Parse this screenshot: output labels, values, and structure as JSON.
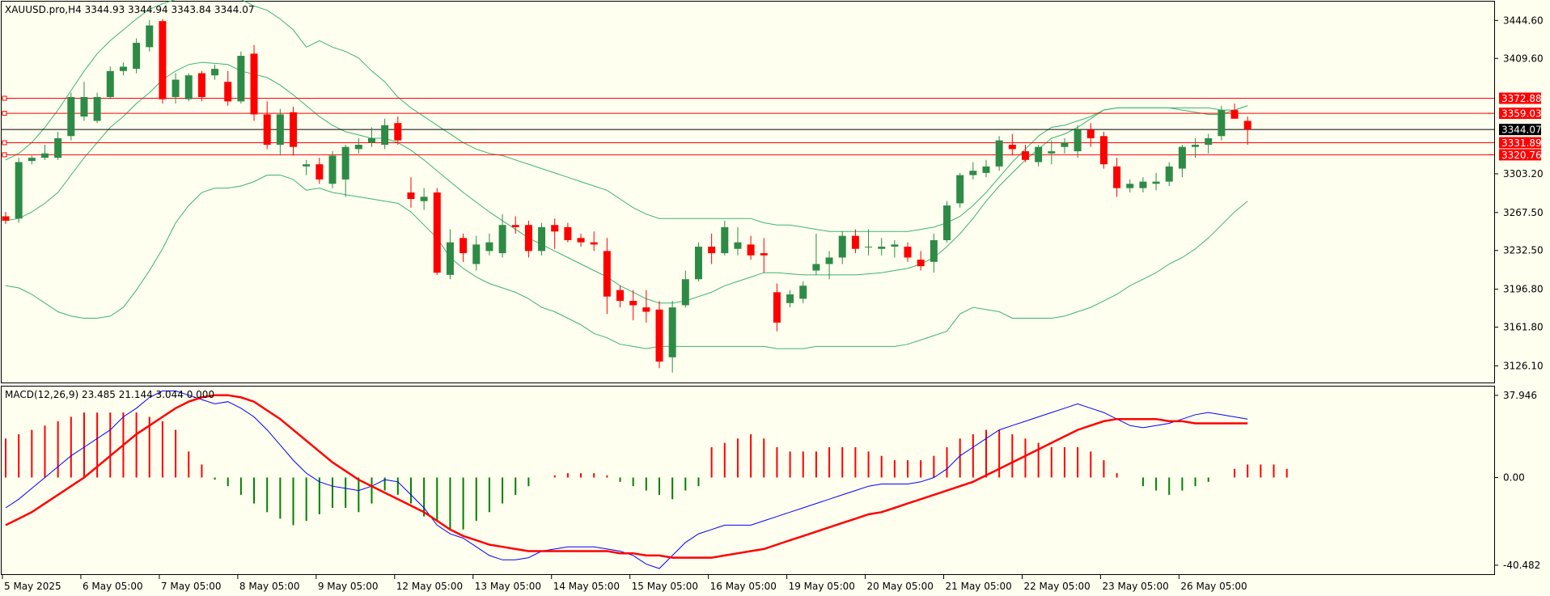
{
  "header": {
    "price_title": "XAUUSD.pro,H4  3344.93 3344.94 3343.84 3344.07",
    "macd_title": "MACD(12,26,9) 23.485 21.144 3.044 0.000"
  },
  "colors": {
    "background": "#fffff0",
    "bull": "#2e8b46",
    "bear": "#ff0000",
    "bands": "#3cb371",
    "level_line": "#ff0000",
    "current_price": "#000000",
    "macd_line": "#0000ff",
    "signal_line": "#ff0000",
    "hist_pos": "#ff0000",
    "hist_neg": "#008000"
  },
  "chart_data": [
    {
      "type": "candlestick",
      "title": "XAUUSD.pro,H4",
      "ylim": [
        3110,
        3462
      ],
      "y_ticks": [
        "3444.60",
        "3409.60",
        "3303.20",
        "3267.50",
        "3232.50",
        "3196.80",
        "3161.80",
        "3126.10"
      ],
      "x_labels": [
        "5 May 2025",
        "6 May 05:00",
        "7 May 05:00",
        "8 May 05:00",
        "9 May 05:00",
        "12 May 05:00",
        "13 May 05:00",
        "14 May 05:00",
        "15 May 05:00",
        "16 May 05:00",
        "19 May 05:00",
        "20 May 05:00",
        "21 May 05:00",
        "22 May 05:00",
        "23 May 05:00",
        "26 May 05:00"
      ],
      "horizontal_levels": [
        {
          "label": "3372.88",
          "value": 3372.88
        },
        {
          "label": "3359.03",
          "value": 3359.03
        },
        {
          "label": "3331.89",
          "value": 3331.89
        },
        {
          "label": "3320.76",
          "value": 3320.76
        }
      ],
      "current_price": {
        "label": "3344.07",
        "value": 3344.07
      },
      "candles": [
        [
          3264,
          3268,
          3257,
          3260
        ],
        [
          3262,
          3318,
          3258,
          3314
        ],
        [
          3315,
          3320,
          3312,
          3318
        ],
        [
          3318,
          3330,
          3316,
          3322
        ],
        [
          3318,
          3342,
          3316,
          3336
        ],
        [
          3338,
          3378,
          3334,
          3374
        ],
        [
          3356,
          3388,
          3352,
          3374
        ],
        [
          3352,
          3378,
          3350,
          3374
        ],
        [
          3374,
          3402,
          3372,
          3398
        ],
        [
          3398,
          3406,
          3394,
          3402
        ],
        [
          3400,
          3428,
          3396,
          3424
        ],
        [
          3420,
          3445,
          3416,
          3440
        ],
        [
          3444,
          3446,
          3368,
          3372
        ],
        [
          3374,
          3396,
          3368,
          3390
        ],
        [
          3372,
          3396,
          3370,
          3394
        ],
        [
          3396,
          3398,
          3370,
          3374
        ],
        [
          3394,
          3404,
          3390,
          3400
        ],
        [
          3388,
          3398,
          3366,
          3370
        ],
        [
          3370,
          3416,
          3368,
          3412
        ],
        [
          3414,
          3422,
          3352,
          3358
        ],
        [
          3358,
          3370,
          3326,
          3330
        ],
        [
          3330,
          3363,
          3320,
          3358
        ],
        [
          3360,
          3365,
          3320,
          3328
        ],
        [
          3310,
          3316,
          3302,
          3312
        ],
        [
          3312,
          3318,
          3294,
          3298
        ],
        [
          3294,
          3324,
          3290,
          3320
        ],
        [
          3298,
          3330,
          3282,
          3328
        ],
        [
          3326,
          3336,
          3322,
          3330
        ],
        [
          3332,
          3346,
          3328,
          3336
        ],
        [
          3330,
          3354,
          3326,
          3348
        ],
        [
          3350,
          3356,
          3330,
          3334
        ],
        [
          3286,
          3300,
          3272,
          3280
        ],
        [
          3278,
          3290,
          3270,
          3282
        ],
        [
          3286,
          3290,
          3210,
          3212
        ],
        [
          3210,
          3252,
          3206,
          3240
        ],
        [
          3244,
          3248,
          3222,
          3230
        ],
        [
          3220,
          3246,
          3214,
          3238
        ],
        [
          3232,
          3248,
          3228,
          3240
        ],
        [
          3230,
          3266,
          3226,
          3256
        ],
        [
          3256,
          3264,
          3248,
          3254
        ],
        [
          3256,
          3260,
          3226,
          3232
        ],
        [
          3232,
          3258,
          3228,
          3254
        ],
        [
          3256,
          3262,
          3234,
          3250
        ],
        [
          3254,
          3258,
          3240,
          3242
        ],
        [
          3244,
          3248,
          3236,
          3240
        ],
        [
          3240,
          3250,
          3232,
          3238
        ],
        [
          3232,
          3244,
          3174,
          3190
        ],
        [
          3196,
          3200,
          3180,
          3186
        ],
        [
          3186,
          3196,
          3168,
          3182
        ],
        [
          3180,
          3196,
          3166,
          3176
        ],
        [
          3178,
          3186,
          3124,
          3130
        ],
        [
          3134,
          3186,
          3120,
          3180
        ],
        [
          3182,
          3214,
          3180,
          3206
        ],
        [
          3206,
          3240,
          3204,
          3236
        ],
        [
          3236,
          3248,
          3220,
          3230
        ],
        [
          3230,
          3260,
          3228,
          3254
        ],
        [
          3234,
          3254,
          3228,
          3240
        ],
        [
          3238,
          3246,
          3224,
          3228
        ],
        [
          3230,
          3244,
          3212,
          3228
        ],
        [
          3194,
          3202,
          3158,
          3166
        ],
        [
          3184,
          3196,
          3180,
          3192
        ],
        [
          3188,
          3204,
          3184,
          3200
        ],
        [
          3214,
          3248,
          3210,
          3220
        ],
        [
          3220,
          3232,
          3206,
          3226
        ],
        [
          3226,
          3250,
          3220,
          3246
        ],
        [
          3246,
          3252,
          3230,
          3234
        ],
        [
          3236,
          3252,
          3228,
          3236
        ],
        [
          3234,
          3244,
          3228,
          3236
        ],
        [
          3236,
          3242,
          3226,
          3238
        ],
        [
          3236,
          3240,
          3222,
          3226
        ],
        [
          3224,
          3232,
          3214,
          3218
        ],
        [
          3222,
          3248,
          3212,
          3242
        ],
        [
          3242,
          3278,
          3240,
          3274
        ],
        [
          3276,
          3304,
          3272,
          3302
        ],
        [
          3302,
          3314,
          3298,
          3306
        ],
        [
          3304,
          3316,
          3300,
          3310
        ],
        [
          3310,
          3338,
          3306,
          3334
        ],
        [
          3330,
          3340,
          3320,
          3326
        ],
        [
          3324,
          3330,
          3314,
          3316
        ],
        [
          3314,
          3330,
          3310,
          3328
        ],
        [
          3322,
          3334,
          3312,
          3324
        ],
        [
          3328,
          3336,
          3322,
          3332
        ],
        [
          3324,
          3348,
          3318,
          3344
        ],
        [
          3344,
          3350,
          3328,
          3336
        ],
        [
          3338,
          3342,
          3308,
          3312
        ],
        [
          3310,
          3318,
          3282,
          3290
        ],
        [
          3290,
          3298,
          3286,
          3294
        ],
        [
          3290,
          3300,
          3286,
          3296
        ],
        [
          3294,
          3304,
          3288,
          3296
        ],
        [
          3296,
          3314,
          3292,
          3310
        ],
        [
          3308,
          3330,
          3300,
          3328
        ],
        [
          3328,
          3336,
          3318,
          3330
        ],
        [
          3330,
          3340,
          3322,
          3336
        ],
        [
          3338,
          3366,
          3334,
          3362
        ],
        [
          3362,
          3368,
          3354,
          3354
        ],
        [
          3352,
          3356,
          3330,
          3344
        ]
      ],
      "bollinger": {
        "middle": [
          3260,
          3262,
          3268,
          3276,
          3286,
          3302,
          3318,
          3332,
          3346,
          3356,
          3368,
          3378,
          3390,
          3398,
          3404,
          3406,
          3405,
          3404,
          3398,
          3395,
          3392,
          3385,
          3376,
          3366,
          3356,
          3348,
          3342,
          3339,
          3336,
          3336,
          3332,
          3325,
          3316,
          3306,
          3296,
          3286,
          3277,
          3268,
          3260,
          3252,
          3244,
          3238,
          3232,
          3226,
          3220,
          3214,
          3208,
          3200,
          3194,
          3188,
          3184,
          3184,
          3186,
          3190,
          3194,
          3200,
          3204,
          3208,
          3212,
          3212,
          3211,
          3210,
          3210,
          3210,
          3210,
          3210,
          3211,
          3212,
          3214,
          3216,
          3220,
          3226,
          3236,
          3248,
          3262,
          3278,
          3292,
          3304,
          3316,
          3326,
          3336,
          3340,
          3346,
          3354,
          3362,
          3364,
          3364,
          3364,
          3364,
          3364,
          3364,
          3364,
          3364,
          3362,
          3362,
          3366
        ],
        "upper": [
          3316,
          3322,
          3332,
          3346,
          3362,
          3380,
          3398,
          3414,
          3426,
          3436,
          3446,
          3455,
          3460,
          3464,
          3466,
          3468,
          3468,
          3466,
          3464,
          3458,
          3454,
          3446,
          3436,
          3420,
          3426,
          3420,
          3416,
          3410,
          3398,
          3388,
          3374,
          3364,
          3356,
          3348,
          3340,
          3332,
          3326,
          3322,
          3320,
          3316,
          3312,
          3308,
          3304,
          3300,
          3296,
          3292,
          3288,
          3280,
          3272,
          3266,
          3262,
          3262,
          3262,
          3262,
          3262,
          3262,
          3262,
          3262,
          3258,
          3256,
          3256,
          3254,
          3252,
          3250,
          3250,
          3250,
          3250,
          3250,
          3250,
          3250,
          3252,
          3254,
          3258,
          3264,
          3274,
          3286,
          3300,
          3314,
          3326,
          3338,
          3346,
          3348,
          3352,
          3356,
          3362,
          3364,
          3364,
          3364,
          3364,
          3364,
          3362,
          3360,
          3358,
          3358,
          3362,
          3366
        ],
        "lower": [
          3200,
          3198,
          3192,
          3184,
          3176,
          3172,
          3170,
          3170,
          3172,
          3180,
          3196,
          3214,
          3234,
          3258,
          3274,
          3286,
          3290,
          3290,
          3292,
          3296,
          3302,
          3302,
          3298,
          3288,
          3290,
          3286,
          3284,
          3282,
          3280,
          3278,
          3276,
          3268,
          3256,
          3244,
          3226,
          3216,
          3208,
          3202,
          3198,
          3194,
          3188,
          3180,
          3176,
          3170,
          3164,
          3156,
          3152,
          3146,
          3144,
          3142,
          3144,
          3144,
          3144,
          3144,
          3144,
          3144,
          3144,
          3144,
          3144,
          3142,
          3142,
          3142,
          3144,
          3144,
          3144,
          3144,
          3144,
          3144,
          3144,
          3146,
          3150,
          3154,
          3158,
          3174,
          3180,
          3178,
          3176,
          3170,
          3170,
          3170,
          3170,
          3172,
          3176,
          3180,
          3186,
          3192,
          3200,
          3206,
          3212,
          3220,
          3226,
          3234,
          3244,
          3256,
          3268,
          3278
        ]
      }
    },
    {
      "type": "macd",
      "title": "MACD(12,26,9)",
      "ylim": [
        -45,
        42
      ],
      "y_ticks": [
        "37.946",
        "0.00",
        "-40.482"
      ],
      "macd": [
        -14,
        -10,
        -5,
        0,
        5,
        10,
        14,
        18,
        22,
        28,
        32,
        37,
        40,
        40,
        38,
        36,
        34,
        35,
        32,
        28,
        22,
        15,
        8,
        2,
        -2,
        -4,
        -5,
        -6,
        -4,
        -1,
        -2,
        -8,
        -14,
        -22,
        -26,
        -28,
        -32,
        -36,
        -38,
        -38,
        -37,
        -34,
        -33,
        -32,
        -32,
        -32,
        -33,
        -34,
        -36,
        -40,
        -42,
        -36,
        -30,
        -26,
        -24,
        -22,
        -22,
        -22,
        -20,
        -18,
        -16,
        -14,
        -12,
        -10,
        -8,
        -6,
        -4,
        -3,
        -3,
        -3,
        -2,
        0,
        4,
        10,
        14,
        18,
        22,
        24,
        26,
        28,
        30,
        32,
        34,
        32,
        30,
        27,
        24,
        23,
        24,
        25,
        27,
        29,
        30,
        29,
        28,
        27
      ],
      "signal": [
        -22,
        -19,
        -16,
        -12,
        -8,
        -4,
        0,
        5,
        10,
        15,
        20,
        24,
        28,
        32,
        35,
        37,
        38,
        38,
        37,
        35,
        31,
        27,
        22,
        17,
        12,
        7,
        3,
        -1,
        -4,
        -7,
        -10,
        -13,
        -16,
        -20,
        -24,
        -27,
        -29,
        -31,
        -32,
        -33,
        -34,
        -34,
        -34,
        -34,
        -34,
        -34,
        -34,
        -35,
        -35,
        -36,
        -36,
        -37,
        -37,
        -37,
        -37,
        -36,
        -35,
        -34,
        -33,
        -31,
        -29,
        -27,
        -25,
        -23,
        -21,
        -19,
        -17,
        -16,
        -14,
        -12,
        -10,
        -8,
        -6,
        -4,
        -2,
        1,
        4,
        7,
        10,
        13,
        16,
        19,
        22,
        24,
        26,
        27,
        27,
        27,
        27,
        26,
        26,
        25,
        25,
        25,
        25,
        25
      ],
      "histogram": [
        18,
        20,
        22,
        24,
        26,
        28,
        30,
        30,
        30,
        30,
        30,
        28,
        26,
        22,
        12,
        6,
        -1,
        -4,
        -8,
        -12,
        -16,
        -19,
        -22,
        -20,
        -17,
        -14,
        -14,
        -16,
        -12,
        -6,
        -8,
        -12,
        -18,
        -20,
        -24,
        -24,
        -20,
        -16,
        -12,
        -8,
        -4,
        0,
        1,
        2,
        2,
        2,
        1,
        -2,
        -4,
        -6,
        -8,
        -10,
        -6,
        -4,
        14,
        16,
        18,
        20,
        18,
        14,
        12,
        12,
        12,
        14,
        14,
        14,
        12,
        10,
        8,
        8,
        8,
        10,
        14,
        18,
        20,
        22,
        22,
        20,
        18,
        16,
        14,
        14,
        14,
        12,
        8,
        2,
        0,
        -4,
        -6,
        -8,
        -6,
        -4,
        -2,
        0,
        4,
        6,
        6,
        6,
        4
      ]
    }
  ]
}
